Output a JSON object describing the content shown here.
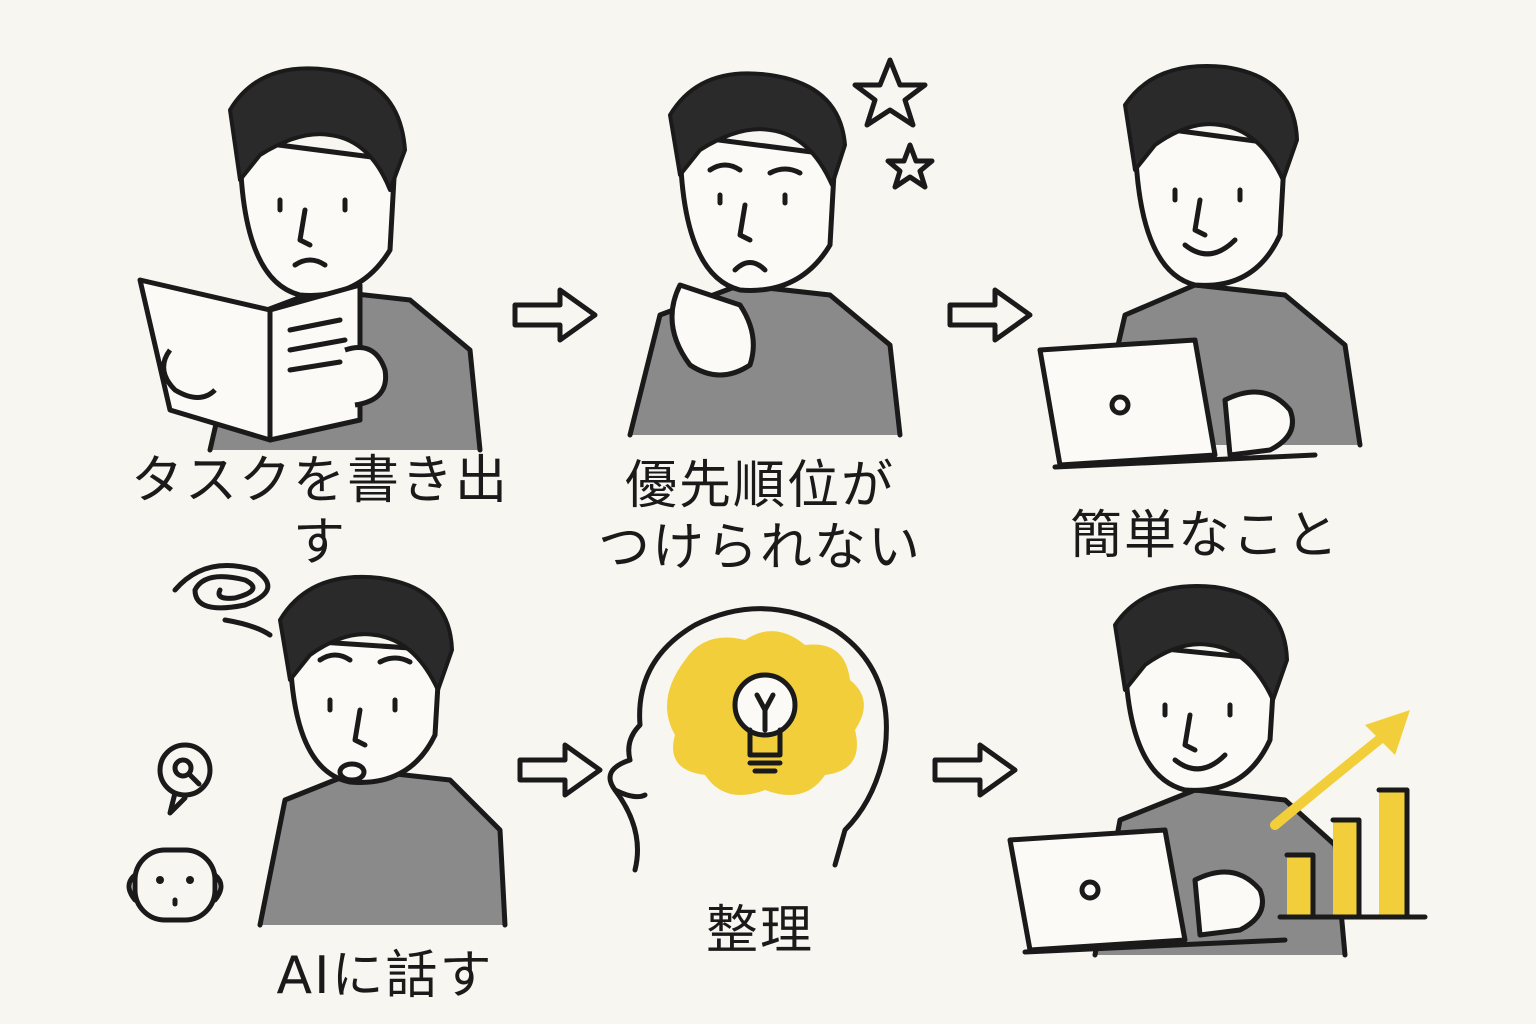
{
  "panels": [
    {
      "id": "write-tasks",
      "label": "タスクを書き出す"
    },
    {
      "id": "cannot-prioritize",
      "label": "優先順位が\nつけられない"
    },
    {
      "id": "easy-things",
      "label": "簡単なこと"
    },
    {
      "id": "talk-to-ai",
      "label": "AIに話す"
    },
    {
      "id": "organize",
      "label": "整理"
    },
    {
      "id": "results",
      "label": ""
    }
  ],
  "colors": {
    "background": "#f7f6f1",
    "suit": "#8a8a8a",
    "accent": "#f2cf3a",
    "ink": "#1a1a1a"
  },
  "icons": [
    "arrow-right-icon",
    "stars-icon",
    "dizzy-swirl-icon",
    "lightbulb-icon",
    "robot-icon",
    "search-bubble-icon",
    "growth-chart-icon",
    "laptop-icon"
  ]
}
